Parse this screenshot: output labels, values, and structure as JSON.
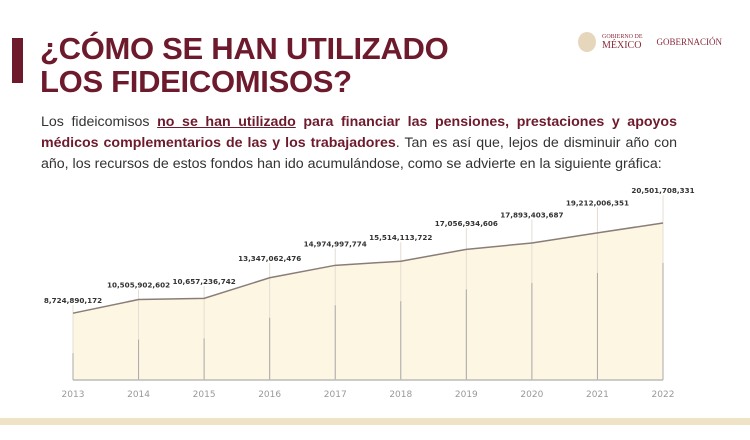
{
  "header": {
    "title_line1": "¿CÓMO SE HAN UTILIZADO",
    "title_line2": "LOS FIDEICOMISOS?",
    "logo_small": "GOBIERNO DE",
    "logo_main": "MÉXICO",
    "logo_dept": "GOBERNACIÓN"
  },
  "paragraph": {
    "p1": "Los fideicomisos ",
    "p2": "no se han utilizado",
    "p3": " para financiar las pensiones, prestaciones y apoyos médicos complementarios de las y los trabajadores",
    "p4": ". Tan es así que, lejos de disminuir año con año, los recursos de estos fondos han ido acumulándose, como se advierte en la siguiente gráfica:"
  },
  "chart_data": {
    "type": "area",
    "categories": [
      "2013",
      "2014",
      "2015",
      "2016",
      "2017",
      "2018",
      "2019",
      "2020",
      "2021",
      "2022"
    ],
    "values": [
      8724890172,
      10505902602,
      10657236742,
      13347062476,
      14974997774,
      15514113722,
      17056934606,
      17893403687,
      19212006351,
      20501708331
    ],
    "labels": [
      "8,724,890,172",
      "10,505,902,602",
      "10,657,236,742",
      "13,347,062,476",
      "14,974,997,774",
      "15,514,113,722",
      "17,056,934,606",
      "17,893,403,687",
      "19,212,006,351",
      "20,501,708,331"
    ],
    "ylim": [
      0,
      20501708331
    ],
    "grid": false,
    "colors": {
      "fill": "#fdf6e3",
      "line": "#8a7d78",
      "axis": "#999",
      "title": "#6d1a2c"
    }
  }
}
